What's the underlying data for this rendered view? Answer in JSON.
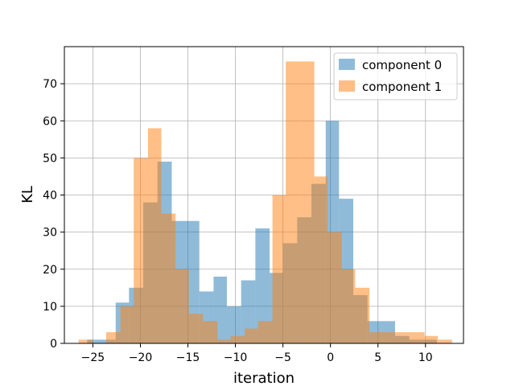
{
  "chart_data": {
    "type": "histogram",
    "xlabel": "iteration",
    "ylabel": "KL",
    "xlim": [
      -28,
      14
    ],
    "ylim": [
      0,
      80
    ],
    "xticks": [
      -25,
      -20,
      -15,
      -10,
      -5,
      0,
      5,
      10
    ],
    "yticks": [
      0,
      10,
      20,
      30,
      40,
      50,
      60,
      70
    ],
    "xtick_labels": [
      "−25",
      "−20",
      "−15",
      "−10",
      "−5",
      "0",
      "5",
      "10"
    ],
    "ytick_labels": [
      "0",
      "10",
      "20",
      "30",
      "40",
      "50",
      "60",
      "70"
    ],
    "grid": true,
    "legend_position": "top-right",
    "series": [
      {
        "name": "component 0",
        "color": "#1f77b4",
        "alpha": 0.5,
        "bin_edges": [
          -25.6,
          -24.1,
          -22.6,
          -21.2,
          -19.7,
          -18.2,
          -16.7,
          -15.3,
          -13.8,
          -12.3,
          -10.9,
          -9.4,
          -7.9,
          -6.4,
          -5.0,
          -3.5,
          -2.0,
          -0.5,
          0.9,
          2.4,
          3.9,
          5.4,
          6.8,
          8.3,
          9.8,
          11.2
        ],
        "counts": [
          1,
          1,
          11,
          15,
          38,
          49,
          33,
          33,
          14,
          18,
          10,
          17,
          31,
          19,
          27,
          34,
          43,
          60,
          39,
          13,
          6,
          6,
          2,
          1,
          1
        ]
      },
      {
        "name": "component 1",
        "color": "#ff7f0e",
        "alpha": 0.5,
        "bin_edges": [
          -26.5,
          -25.0,
          -23.6,
          -22.1,
          -20.7,
          -19.2,
          -17.8,
          -16.3,
          -14.9,
          -13.4,
          -11.9,
          -10.5,
          -9.0,
          -7.6,
          -6.1,
          -4.7,
          -3.2,
          -1.7,
          -0.3,
          1.2,
          2.6,
          4.1,
          5.5,
          7.0,
          8.4,
          9.9,
          11.3,
          12.8
        ],
        "counts": [
          1,
          0,
          3,
          10,
          50,
          58,
          35,
          20,
          8,
          6,
          1,
          2,
          4,
          6,
          40,
          76,
          76,
          45,
          30,
          20,
          15,
          3,
          3,
          3,
          3,
          2,
          1
        ]
      }
    ]
  }
}
